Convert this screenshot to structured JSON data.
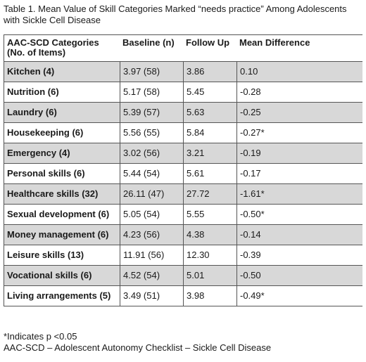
{
  "caption": {
    "line1": "Table 1. Mean Value of Skill Categories Marked “needs practice” Among Adolescents",
    "line2": "with Sickle Cell Disease"
  },
  "table": {
    "headers": {
      "category_line1": "AAC-SCD Categories",
      "category_line2": "(No. of Items)",
      "baseline": "Baseline (n)",
      "followup": "Follow Up",
      "mean_difference": "Mean Difference"
    },
    "rows": [
      {
        "category": "Kitchen (4)",
        "baseline": "3.97 (58)",
        "followup": "3.86",
        "mean_difference": "0.10",
        "shaded": true
      },
      {
        "category": "Nutrition (6)",
        "baseline": "5.17 (58)",
        "followup": "5.45",
        "mean_difference": "-0.28",
        "shaded": false
      },
      {
        "category": "Laundry (6)",
        "baseline": "5.39 (57)",
        "followup": "5.63",
        "mean_difference": "-0.25",
        "shaded": true
      },
      {
        "category": "Housekeeping (6)",
        "baseline": "5.56 (55)",
        "followup": "5.84",
        "mean_difference": "-0.27*",
        "shaded": false
      },
      {
        "category": "Emergency (4)",
        "baseline": "3.02 (56)",
        "followup": "3.21",
        "mean_difference": "-0.19",
        "shaded": true
      },
      {
        "category": "Personal skills (6)",
        "baseline": "5.44 (54)",
        "followup": "5.61",
        "mean_difference": "-0.17",
        "shaded": false
      },
      {
        "category": "Healthcare skills (32)",
        "baseline": "26.11 (47)",
        "followup": "27.72",
        "mean_difference": "-1.61*",
        "shaded": true
      },
      {
        "category": "Sexual development (6)",
        "baseline": "5.05 (54)",
        "followup": "5.55",
        "mean_difference": "-0.50*",
        "shaded": false
      },
      {
        "category": "Money management (6)",
        "baseline": "4.23 (56)",
        "followup": "4.38",
        "mean_difference": "-0.14",
        "shaded": true
      },
      {
        "category": "Leisure skills (13)",
        "baseline": "11.91 (56)",
        "followup": "12.30",
        "mean_difference": "-0.39",
        "shaded": false
      },
      {
        "category": "Vocational skills (6)",
        "baseline": "4.52 (54)",
        "followup": "5.01",
        "mean_difference": "-0.50",
        "shaded": true
      },
      {
        "category": "Living arrangements (5)",
        "baseline": "3.49 (51)",
        "followup": "3.98",
        "mean_difference": "-0.49*",
        "shaded": false
      }
    ]
  },
  "footnotes": {
    "significance": "*Indicates p <0.05",
    "abbreviation": "AAC-SCD – Adolescent Autonomy Checklist – Sickle Cell Disease"
  }
}
